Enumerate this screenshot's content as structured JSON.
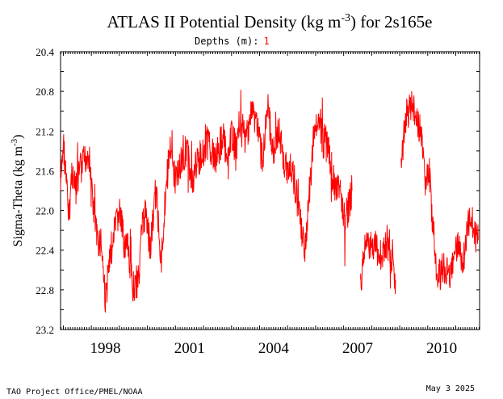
{
  "chart_data": {
    "type": "line",
    "title": "ATLAS II Potential Density (kg m",
    "title_sup": "-3",
    "title_suffix": ") for 2s165e",
    "subtitle_label": "Depths (m):",
    "subtitle_value": "1",
    "ylabel": "Sigma-Theta (kg m",
    "ylabel_sup": "-3",
    "ylabel_suffix": ")",
    "y_ticks": [
      "20.4",
      "20.8",
      "21.2",
      "21.6",
      "22.0",
      "22.4",
      "22.8",
      "23.2"
    ],
    "y_tick_values": [
      20.4,
      20.8,
      21.2,
      21.6,
      22.0,
      22.4,
      22.8,
      23.2
    ],
    "ylim": [
      20.4,
      23.2
    ],
    "y_inverted": true,
    "x_ticks": [
      "1998",
      "2001",
      "2004",
      "2007",
      "2010"
    ],
    "x_tick_values": [
      1998,
      2001,
      2004,
      2007,
      2010
    ],
    "xlim": [
      1996.9,
      2011.85
    ],
    "grid": false,
    "series": [
      {
        "color": "#ff0000",
        "segments": [
          {
            "x": [
              1996.9,
              1997.0,
              1997.1,
              1997.2,
              1997.3,
              1997.45,
              1997.6,
              1997.75,
              1997.9,
              1998.05,
              1998.2,
              1998.35,
              1998.5,
              1998.7,
              1998.85,
              1999.0,
              1999.15,
              1999.3,
              1999.5,
              1999.65,
              1999.8,
              1999.95,
              2000.1,
              2000.3,
              2000.5,
              2000.65,
              2000.8,
              2001.0,
              2001.2,
              2001.4,
              2001.6,
              2001.8,
              2002.0,
              2002.2,
              2002.4,
              2002.55,
              2002.7,
              2002.85,
              2003.0,
              2003.15,
              2003.3,
              2003.5,
              2003.7,
              2003.9,
              2004.1,
              2004.3,
              2004.5,
              2004.7,
              2004.9,
              2005.1,
              2005.3,
              2005.5,
              2005.65,
              2005.8,
              2005.95,
              2006.1,
              2006.25,
              2006.4,
              2006.55,
              2006.7,
              2006.85,
              2007.0,
              2007.15,
              2007.3
            ],
            "y": [
              21.8,
              21.3,
              21.7,
              22.1,
              21.6,
              21.8,
              21.6,
              21.5,
              21.4,
              21.9,
              22.3,
              22.3,
              22.9,
              22.4,
              22.2,
              22.0,
              22.3,
              22.4,
              22.8,
              22.7,
              22.2,
              22.0,
              22.4,
              21.8,
              22.5,
              21.8,
              21.4,
              21.7,
              21.5,
              21.4,
              21.7,
              21.5,
              21.4,
              21.3,
              21.5,
              21.4,
              21.2,
              21.6,
              21.2,
              21.4,
              21.1,
              21.3,
              21.0,
              21.1,
              21.5,
              21.0,
              21.4,
              21.2,
              21.6,
              21.5,
              21.8,
              22.2,
              22.4,
              21.7,
              21.3,
              21.0,
              21.3,
              21.3,
              21.6,
              21.8,
              21.7,
              22.1,
              22.0,
              21.8
            ]
          },
          {
            "x": [
              2007.6,
              2007.7,
              2007.8,
              2007.95,
              2008.1,
              2008.25,
              2008.4,
              2008.55,
              2008.7,
              2008.85
            ],
            "y": [
              22.8,
              22.5,
              22.3,
              22.4,
              22.3,
              22.5,
              22.4,
              22.3,
              22.5,
              22.7
            ]
          },
          {
            "x": [
              2009.05,
              2009.15,
              2009.25,
              2009.35,
              2009.45,
              2009.6,
              2009.75,
              2009.9,
              2010.05,
              2010.2,
              2010.35,
              2010.5,
              2010.65,
              2010.8,
              2010.95,
              2011.1,
              2011.25,
              2011.4,
              2011.55,
              2011.7,
              2011.8
            ],
            "y": [
              21.6,
              21.2,
              21.0,
              21.0,
              20.9,
              21.1,
              21.2,
              21.7,
              21.6,
              22.2,
              22.7,
              22.6,
              22.6,
              22.7,
              22.5,
              22.3,
              22.6,
              22.2,
              22.0,
              22.3,
              22.3
            ]
          }
        ]
      }
    ]
  },
  "footer": {
    "credit": "TAO Project Office/PMEL/NOAA",
    "date": "May  3 2025"
  }
}
